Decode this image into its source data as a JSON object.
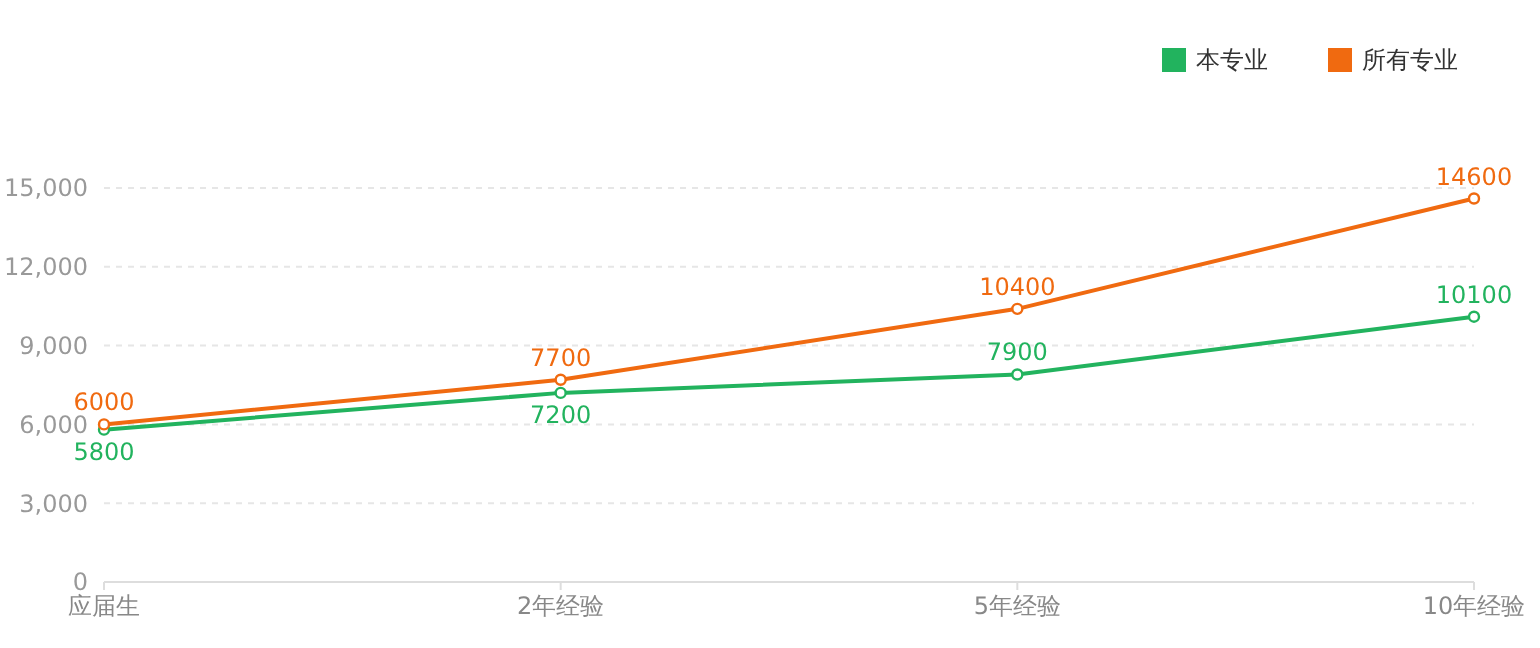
{
  "chart_data": {
    "type": "line",
    "categories": [
      "应届生",
      "2年经验",
      "5年经验",
      "10年经验"
    ],
    "series": [
      {
        "name": "本专业",
        "color": "#22b35e",
        "values": [
          5800,
          7200,
          7900,
          10100
        ]
      },
      {
        "name": "所有专业",
        "color": "#f06a10",
        "values": [
          6000,
          7700,
          10400,
          14600
        ]
      }
    ],
    "ylim": [
      0,
      15000
    ],
    "yticks": [
      {
        "value": 0,
        "label": "0"
      },
      {
        "value": 3000,
        "label": "3,000"
      },
      {
        "value": 6000,
        "label": "6,000"
      },
      {
        "value": 9000,
        "label": "9,000"
      },
      {
        "value": 12000,
        "label": "12,000"
      },
      {
        "value": 15000,
        "label": "15,000"
      }
    ],
    "grid": "y",
    "legend": "top right",
    "marker": "circle",
    "data_labels": true
  }
}
